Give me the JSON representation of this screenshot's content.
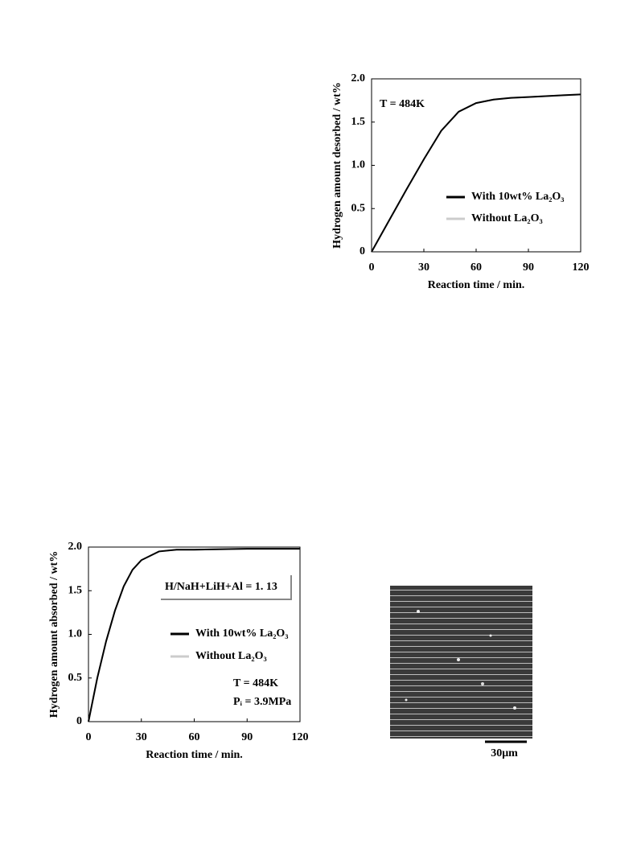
{
  "chart_data": [
    {
      "type": "line",
      "ylabel": "Hydrogen amount desorbed / wt%",
      "xlabel": "Reaction time / min.",
      "x": [
        0,
        10,
        20,
        30,
        40,
        50,
        60,
        70,
        80,
        90,
        100,
        110,
        120
      ],
      "series": [
        {
          "name": "Without La₂O₃",
          "color": "#cccccc",
          "values": [
            0,
            0.36,
            0.72,
            1.07,
            1.4,
            1.62,
            1.72,
            1.76,
            1.78,
            1.79,
            1.8,
            1.81,
            1.82
          ]
        },
        {
          "name": "With 10wt% La₂O₃",
          "color": "#000000",
          "values": [
            0,
            0.36,
            0.72,
            1.07,
            1.4,
            1.62,
            1.72,
            1.76,
            1.78,
            1.79,
            1.8,
            1.81,
            1.82
          ]
        }
      ],
      "xlim": [
        0,
        120
      ],
      "xticks": [
        0,
        30,
        60,
        90,
        120
      ],
      "ylim": [
        0,
        2
      ],
      "yticks": [
        0,
        0.5,
        {
          "value": 1,
          "label": "1.0"
        },
        1.5,
        {
          "value": 2,
          "label": "2.0"
        }
      ],
      "annotations": [
        "T = 484K"
      ],
      "legend": "center right",
      "grid": false
    },
    {
      "type": "line",
      "ylabel": "Hydrogen amount absorbed / wt%",
      "xlabel": "Reaction time / min.",
      "x": [
        0,
        5,
        10,
        15,
        20,
        25,
        30,
        40,
        50,
        60,
        90,
        120
      ],
      "series": [
        {
          "name": "Without La₂O₃",
          "color": "#cccccc",
          "values": [
            0,
            0.5,
            0.92,
            1.27,
            1.55,
            1.74,
            1.85,
            1.95,
            1.97,
            1.97,
            1.98,
            1.98
          ]
        },
        {
          "name": "With 10wt% La₂O₃",
          "color": "#000000",
          "values": [
            0,
            0.5,
            0.92,
            1.27,
            1.55,
            1.74,
            1.85,
            1.95,
            1.97,
            1.97,
            1.98,
            1.98
          ]
        }
      ],
      "xlim": [
        0,
        120
      ],
      "xticks": [
        0,
        30,
        60,
        90,
        120
      ],
      "ylim": [
        0,
        2
      ],
      "yticks": [
        0,
        0.5,
        {
          "value": 1,
          "label": "1.0"
        },
        1.5,
        {
          "value": 2,
          "label": "2.0"
        }
      ],
      "annotations": [
        "H/NaH+LiH+Al = 1. 13",
        "T = 484K",
        "Pᵢ = 3.9MPa"
      ],
      "legend": "center right",
      "grid": false
    }
  ],
  "micrograph": {
    "scale_bar": "30μm"
  }
}
